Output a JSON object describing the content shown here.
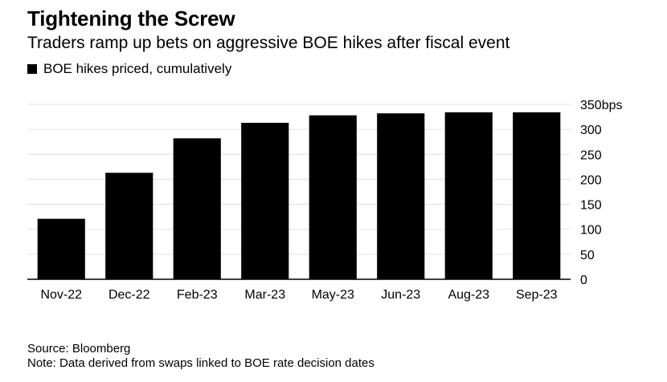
{
  "header": {
    "title": "Tightening the Screw",
    "subtitle": "Traders ramp up bets on aggressive BOE hikes after fiscal event"
  },
  "legend": {
    "label": "BOE hikes priced, cumulatively"
  },
  "footer": {
    "source": "Source: Bloomberg",
    "note": "Note: Data derived from swaps linked to BOE rate decision dates"
  },
  "chart_data": {
    "type": "bar",
    "title": "Tightening the Screw",
    "subtitle": "Traders ramp up bets on aggressive BOE hikes after fiscal event",
    "categories": [
      "Nov-22",
      "Dec-22",
      "Feb-23",
      "Mar-23",
      "May-23",
      "Jun-23",
      "Aug-23",
      "Sep-23"
    ],
    "series": [
      {
        "name": "BOE hikes priced, cumulatively",
        "values": [
          121,
          213,
          282,
          313,
          328,
          332,
          334,
          334
        ]
      }
    ],
    "ylim": [
      0,
      350
    ],
    "yticks": [
      0,
      50,
      100,
      150,
      200,
      250,
      300,
      350
    ],
    "ytick_labels": [
      "0",
      "50",
      "100",
      "150",
      "200",
      "250",
      "300",
      "350bps"
    ],
    "y_axis_side": "right",
    "grid": true,
    "bar_color": "#000000",
    "grid_color": "#e0e0e0"
  }
}
